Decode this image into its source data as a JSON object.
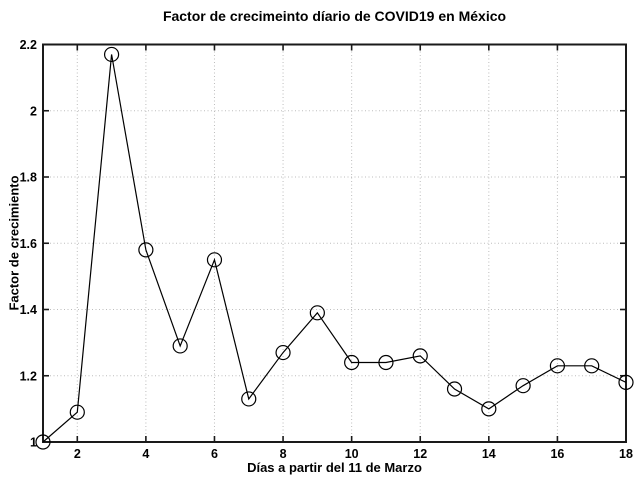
{
  "chart_data": {
    "type": "line",
    "title": "Factor de crecimeinto díario de COVID19 en México",
    "xlabel": "Días a partir del 11 de Marzo",
    "ylabel": "Factor de crecimiento",
    "x": [
      1,
      2,
      3,
      4,
      5,
      6,
      7,
      8,
      9,
      10,
      11,
      12,
      13,
      14,
      15,
      16,
      17,
      18
    ],
    "y": [
      1.0,
      1.09,
      2.17,
      1.58,
      1.29,
      1.55,
      1.13,
      1.27,
      1.39,
      1.24,
      1.24,
      1.26,
      1.16,
      1.1,
      1.17,
      1.23,
      1.23,
      1.18
    ],
    "xlim": [
      1,
      18
    ],
    "ylim": [
      1,
      2.2
    ],
    "xticks": [
      2,
      4,
      6,
      8,
      10,
      12,
      14,
      16,
      18
    ],
    "xtick_labels": [
      "2",
      "4",
      "6",
      "8",
      "10",
      "12",
      "14",
      "16",
      "18"
    ],
    "yticks": [
      1,
      1.2,
      1.4,
      1.6,
      1.8,
      2,
      2.2
    ],
    "ytick_labels": [
      "1",
      "1.2",
      "1.4",
      "1.6",
      "1.8",
      "2",
      "2.2"
    ],
    "grid": true,
    "grid_style": "dotted",
    "legend": "none",
    "marker": "circle-open",
    "marker_radius": 7,
    "line_color": "#000000",
    "frame_color": "#1a1a1a",
    "grid_color": "#bdbdbd",
    "background": "#ffffff"
  }
}
